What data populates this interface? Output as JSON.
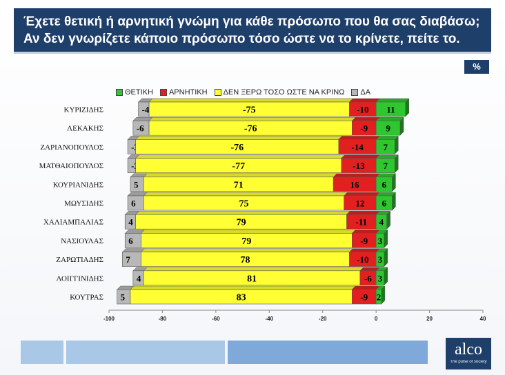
{
  "header": {
    "title_line1": "Έχετε θετική ή αρνητική γνώμη για κάθε πρόσωπο που θα σας διαβάσω;",
    "title_line2": "Αν δεν γνωρίζετε κάποιο πρόσωπο τόσο ώστε να το κρίνετε, πείτε το."
  },
  "unit_badge": "%",
  "logo": {
    "name": "alco",
    "tagline": "The pulse of society"
  },
  "colors": {
    "header_bg": "#1f3f6b",
    "positive": "#2ec82e",
    "negative": "#e32020",
    "dont_know": "#ffff33",
    "na": "#b8b8b8"
  },
  "chart_data": {
    "type": "bar",
    "orientation": "horizontal",
    "stacked": "diverging",
    "categories": [
      "ΚΥΡΙΖΙΔΗΣ",
      "ΛΕΚΑΚΗΣ",
      "ΖΑΡΙΑΝΟΠΟΥΛΟΣ",
      "ΜΑΤΘΑΙΟΠΟΥΛΟΣ",
      "ΚΟΥΡΙΑΝΙΔΗΣ",
      "ΜΩΥΣΙΔΗΣ",
      "ΧΑΛΙΑΜΠΑΛΙΑΣ",
      "ΝΑΣΙΟΥΛΑΣ",
      "ΖΑΡΩΤΙΑΔΗΣ",
      "ΛΟΙΓΓΙΝΙΔΗΣ",
      "ΚΟΥΤΡΑΣ"
    ],
    "series": [
      {
        "name": "ΘΕΤΙΚΗ",
        "values": [
          11,
          9,
          7,
          7,
          6,
          6,
          4,
          3,
          3,
          3,
          2
        ],
        "labels": [
          "11",
          "9",
          "7",
          "7",
          "6",
          "6",
          "4",
          "3",
          "3",
          "3",
          "2"
        ]
      },
      {
        "name": "ΑΡΝΗΤΙΚΗ",
        "values": [
          -10,
          -9,
          -14,
          -13,
          -16,
          -12,
          -11,
          -9,
          -10,
          -6,
          -9
        ],
        "labels": [
          "-10",
          "-9",
          "-14",
          "-13",
          "16",
          "12",
          "-11",
          "-9",
          "-10",
          "-6",
          "-9"
        ]
      },
      {
        "name": "ΔΕΝ ΞΕΡΩ ΤΟΣΟ ΩΣΤΕ ΝΑ ΚΡΙΝΩ",
        "values": [
          -75,
          -76,
          -76,
          -77,
          -71,
          -75,
          -79,
          -79,
          -78,
          -81,
          -83
        ],
        "labels": [
          "-75",
          "-76",
          "-76",
          "-77",
          "71",
          "75",
          "79",
          "79",
          "78",
          "81",
          "83"
        ]
      },
      {
        "name": "ΔΑ",
        "values": [
          -4,
          -6,
          -3,
          -3,
          -5,
          -6,
          -4,
          -6,
          -7,
          -4,
          -5
        ],
        "labels": [
          "-4",
          "-6",
          "-3",
          "-3",
          "5",
          "6",
          "4",
          "6",
          "7",
          "4",
          "5"
        ]
      }
    ],
    "xlim": [
      -100,
      40
    ],
    "xticks": [
      -100,
      -80,
      -60,
      -40,
      -20,
      0,
      20,
      40
    ],
    "legend": "top",
    "grid": false
  }
}
